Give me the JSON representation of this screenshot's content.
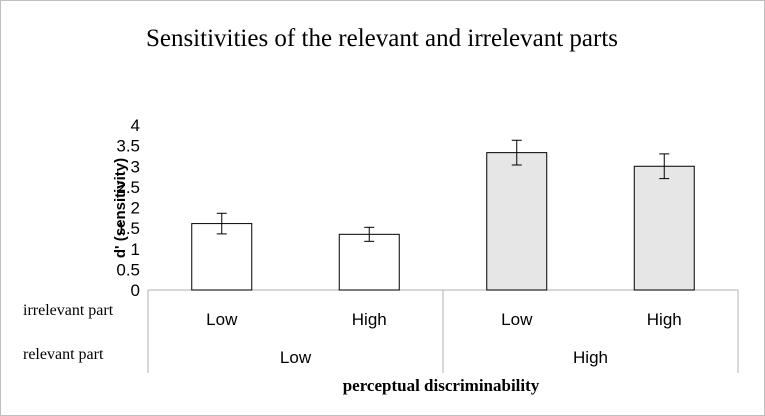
{
  "chart_data": {
    "type": "bar",
    "title": "Sensitivities of the relevant and irrelevant parts",
    "ylabel": "d' (sensitivity)",
    "xlabel": "perceptual discriminability",
    "ylim": [
      0,
      4
    ],
    "yticks": [
      "0",
      "0.5",
      "1",
      "1.5",
      "2",
      "2.5",
      "3",
      "3.5",
      "4"
    ],
    "row_labels": {
      "irrelevant": "irrelevant part",
      "relevant": "relevant part"
    },
    "irrelevant_levels": [
      "Low",
      "High",
      "Low",
      "High"
    ],
    "relevant_groups": [
      {
        "label": "Low"
      },
      {
        "label": "High"
      }
    ],
    "values": [
      1.61,
      1.35,
      3.33,
      3.0
    ],
    "errors": [
      0.25,
      0.17,
      0.3,
      0.3
    ],
    "bar_colors": [
      "#ffffff",
      "#ffffff",
      "#e6e6e6",
      "#e6e6e6"
    ],
    "bar_stroke": "#000000",
    "axis_color": "#bfbfbf"
  }
}
